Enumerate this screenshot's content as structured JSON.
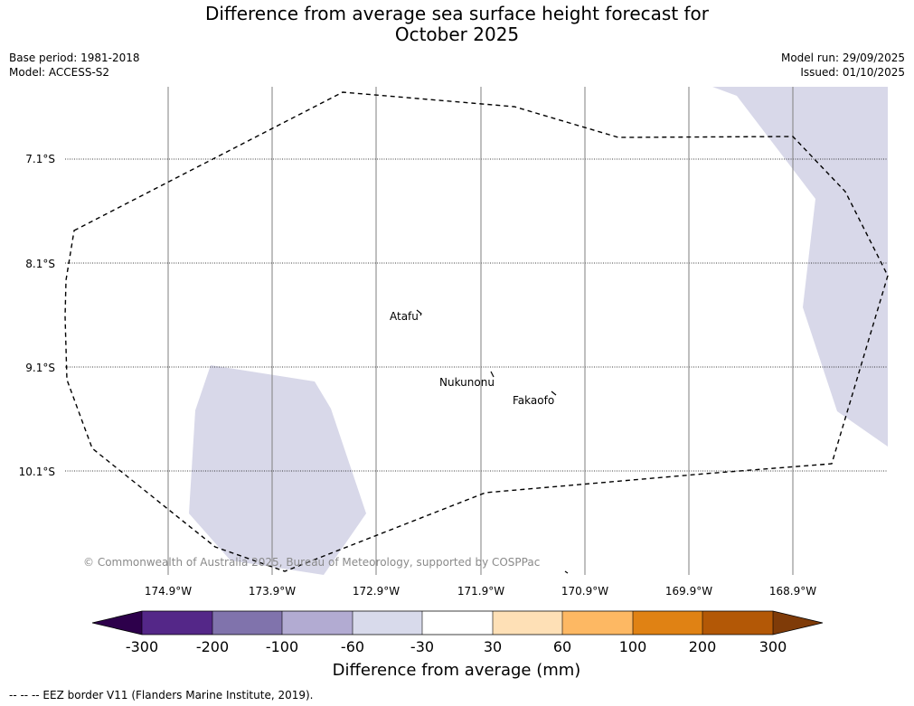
{
  "title": {
    "line1": "Difference from average sea surface height forecast for",
    "line2": "October 2025"
  },
  "meta_left": {
    "base_period": "Base period: 1981-2018",
    "model": "Model: ACCESS-S2"
  },
  "meta_right": {
    "model_run": "Model run: 29/09/2025",
    "issued": "Issued: 01/10/2025"
  },
  "map": {
    "latitude_labels": [
      "7.1°S",
      "8.1°S",
      "9.1°S",
      "10.1°S"
    ],
    "longitude_labels": [
      "174.9°W",
      "173.9°W",
      "172.9°W",
      "171.9°W",
      "170.9°W",
      "169.9°W",
      "168.9°W"
    ],
    "places": [
      "Atafu",
      "Nukunonu",
      "Fakaofo"
    ],
    "credit": "© Commonwealth of Australia 2025, Bureau of Meteorology, supported by COSPPac",
    "shading_category": "-60 to -30 mm",
    "colors": {
      "shading": "#d8d8e9",
      "eez_line": "#000000",
      "grid": "#7f7f7f"
    }
  },
  "colorbar": {
    "tick_labels": [
      "-300",
      "-200",
      "-100",
      "-60",
      "-30",
      "30",
      "60",
      "100",
      "200",
      "300"
    ],
    "colors": [
      "#2d004b",
      "#542788",
      "#8073ac",
      "#b2abd2",
      "#d8daeb",
      "#ffffff",
      "#fee0b6",
      "#fdb863",
      "#e08214",
      "#b35806",
      "#7f3b08"
    ],
    "title": "Difference from average (mm)"
  },
  "legend_footnote": "--  --  -- EEZ border V11 (Flanders Marine Institute, 2019)."
}
